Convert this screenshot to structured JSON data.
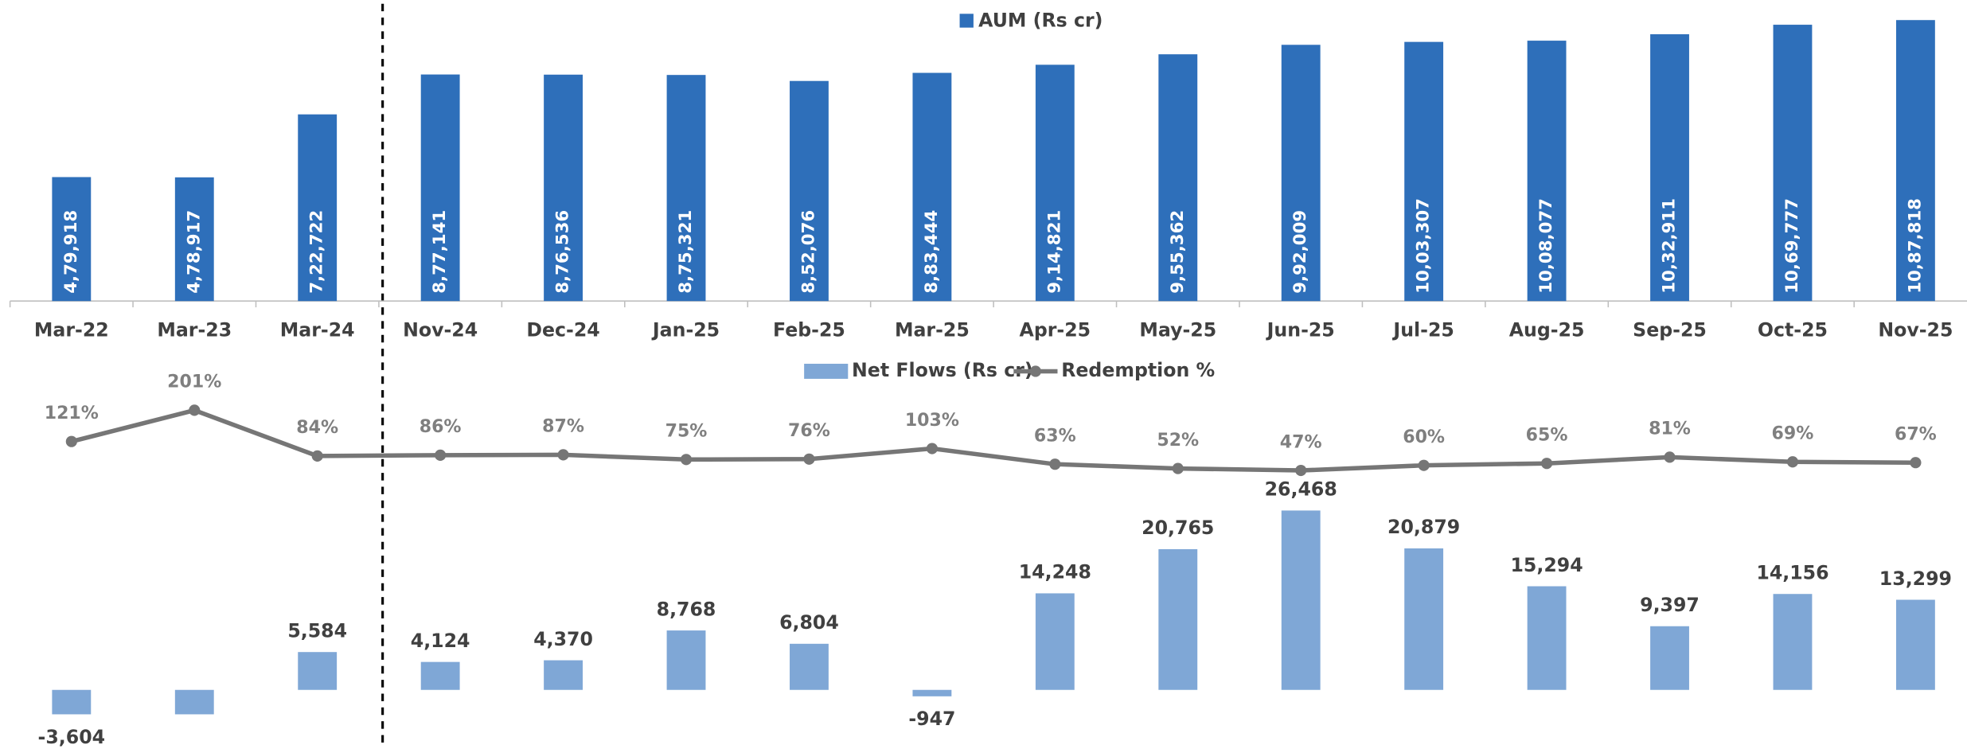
{
  "chart_data": [
    {
      "type": "bar",
      "categories": [
        "Mar-22",
        "Mar-23",
        "Mar-24",
        "Nov-24",
        "Dec-24",
        "Jan-25",
        "Feb-25",
        "Mar-25",
        "Apr-25",
        "May-25",
        "Jun-25",
        "Jul-25",
        "Aug-25",
        "Sep-25",
        "Oct-25",
        "Nov-25"
      ],
      "series": [
        {
          "name": "AUM (Rs cr)",
          "color": "#2e6fba",
          "values": [
            479918,
            478917,
            722722,
            877141,
            876536,
            875321,
            852076,
            883444,
            914821,
            955362,
            992009,
            1003307,
            1008077,
            1032911,
            1069777,
            1087818
          ],
          "value_labels": [
            "4,79,918",
            "4,78,917",
            "7,22,722",
            "8,77,141",
            "8,76,536",
            "8,75,321",
            "8,52,076",
            "8,83,444",
            "9,14,821",
            "9,55,362",
            "9,92,009",
            "10,03,307",
            "10,08,077",
            "10,32,911",
            "10,69,777",
            "10,87,818"
          ]
        }
      ]
    },
    {
      "type": "combo",
      "series": [
        {
          "name": "Net Flows (Rs cr)",
          "type": "bar",
          "color": "#7fa7d6",
          "values": [
            -3604,
            -3604,
            5584,
            4124,
            4370,
            8768,
            6804,
            -947,
            14248,
            20765,
            26468,
            20879,
            15294,
            9397,
            14156,
            13299
          ],
          "value_labels": [
            "-3,604",
            null,
            "5,584",
            "4,124",
            "4,370",
            "8,768",
            "6,804",
            "-947",
            "14,248",
            "20,765",
            "26,468",
            "20,879",
            "15,294",
            "9,397",
            "14,156",
            "13,299"
          ]
        },
        {
          "name": "Redemption %",
          "type": "line",
          "color": "#767676",
          "values": [
            121,
            201,
            84,
            86,
            87,
            75,
            76,
            103,
            63,
            52,
            47,
            60,
            65,
            81,
            69,
            67
          ],
          "value_labels": [
            "121%",
            "201%",
            "84%",
            "86%",
            "87%",
            "75%",
            "76%",
            "103%",
            "63%",
            "52%",
            "47%",
            "60%",
            "65%",
            "81%",
            "69%",
            "67%"
          ]
        }
      ]
    }
  ]
}
